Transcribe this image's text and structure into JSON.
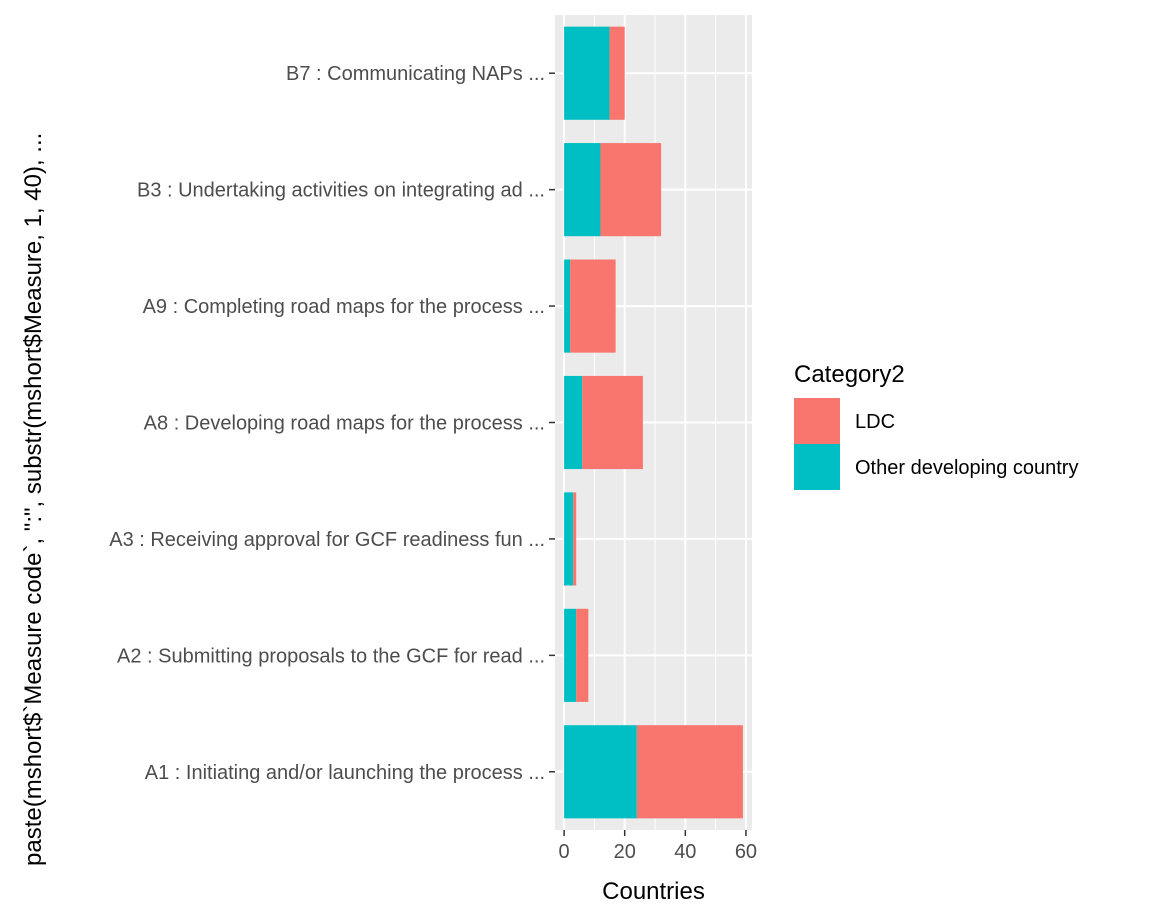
{
  "chart_data": {
    "type": "bar",
    "orientation": "horizontal",
    "stacked": true,
    "categories": [
      "A1 : Initiating and/or launching the process  ...",
      "A2 : Submitting proposals to the GCF for read ...",
      "A3 : Receiving approval for GCF readiness fun ...",
      "A8 : Developing road maps for the process ...",
      "A9 : Completing road maps for the process ...",
      "B3 : Undertaking activities on integrating ad ...",
      "B7 : Communicating NAPs ..."
    ],
    "series": [
      {
        "name": "Other developing country",
        "color": "#00BFC4",
        "values": [
          24,
          4,
          3,
          6,
          2,
          12,
          15
        ]
      },
      {
        "name": "LDC",
        "color": "#F8766D",
        "values": [
          35,
          4,
          1,
          20,
          15,
          20,
          5
        ]
      }
    ],
    "xlabel": "Countries",
    "ylabel": "paste(mshort$`Measure code`, \":\", substr(mshort$Measure, 1, 40), ...",
    "xlim": [
      -3,
      62
    ],
    "xticks": [
      0,
      20,
      40,
      60
    ],
    "grid": true,
    "panel_background": "#EBEBEB",
    "legend": {
      "title": "Category2",
      "position": "right",
      "entries": [
        {
          "label": "LDC",
          "color": "#F8766D"
        },
        {
          "label": "Other developing country",
          "color": "#00BFC4"
        }
      ]
    }
  }
}
